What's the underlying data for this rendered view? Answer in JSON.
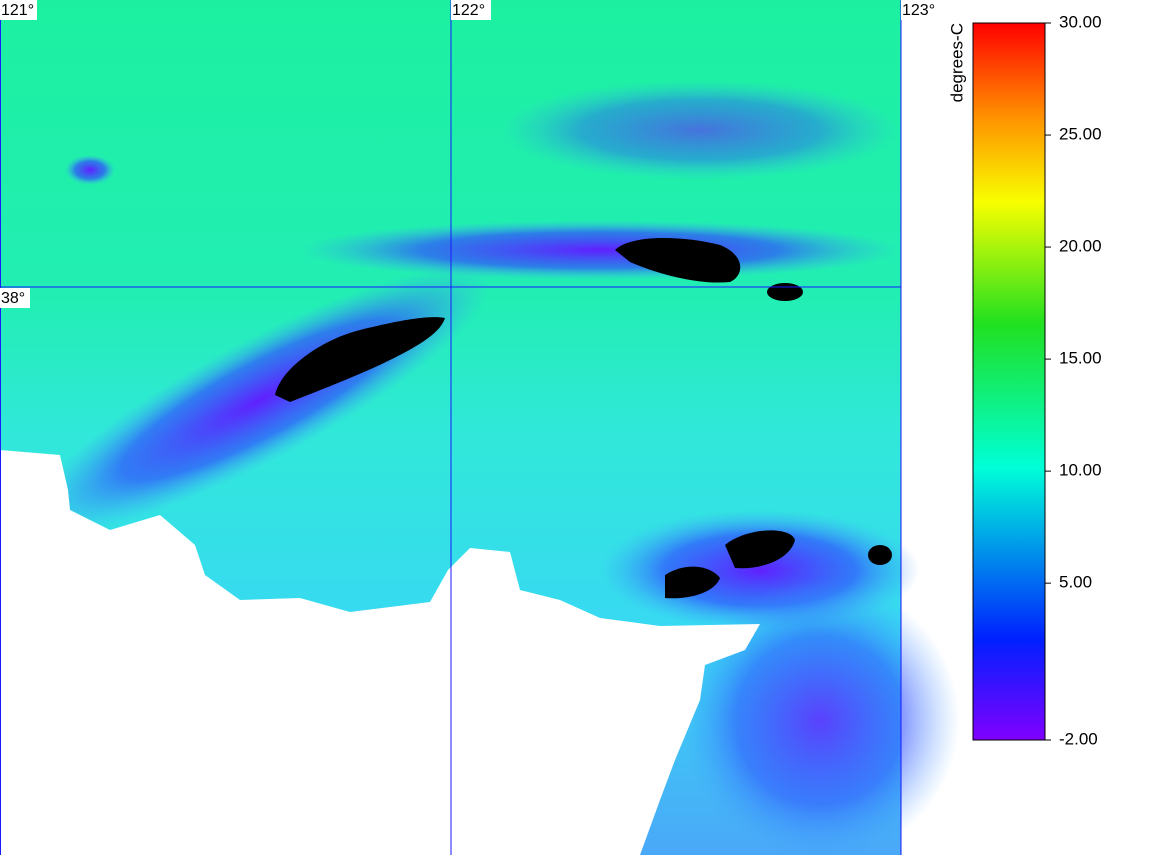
{
  "map": {
    "lon_labels": [
      "121°",
      "122°",
      "123°"
    ],
    "lat_labels": [
      "38°"
    ]
  },
  "colorbar": {
    "label": "degrees-C",
    "lim": [
      -2,
      30
    ],
    "ticks": [
      {
        "value": -2,
        "label": "-2.00"
      },
      {
        "value": 5,
        "label": "5.00"
      },
      {
        "value": 10,
        "label": "10.00"
      },
      {
        "value": 15,
        "label": "15.00"
      },
      {
        "value": 20,
        "label": "20.00"
      },
      {
        "value": 25,
        "label": "25.00"
      },
      {
        "value": 30,
        "label": "30.00"
      }
    ]
  }
}
